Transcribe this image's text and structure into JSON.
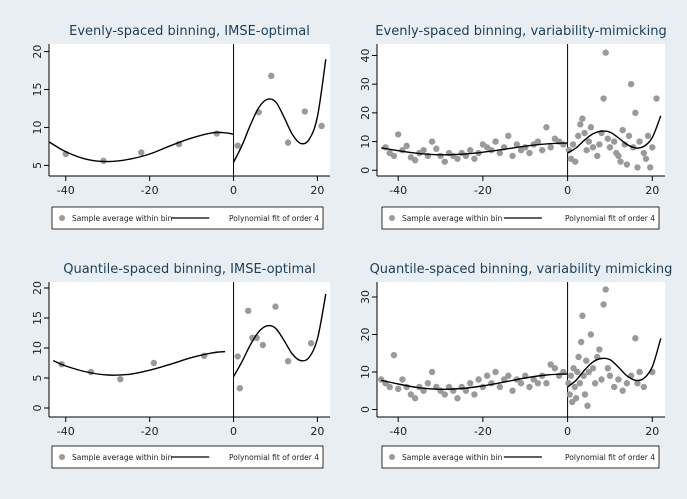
{
  "chart_data": [
    {
      "type": "scatter",
      "title": "Evenly-spaced binning, IMSE-optimal",
      "xlabel": "",
      "ylabel": "",
      "xlim": [
        -44,
        23
      ],
      "ylim": [
        3.6,
        21
      ],
      "xticks": [
        -40,
        -20,
        0,
        20
      ],
      "yticks": [
        5,
        10,
        15,
        20
      ],
      "cutoff": 0,
      "legend": [
        "Sample average within bin",
        "Polynomial fit of order 4"
      ],
      "grid": false,
      "points": [
        [
          -40,
          6.5
        ],
        [
          -31,
          5.6
        ],
        [
          -22,
          6.7
        ],
        [
          -13,
          7.8
        ],
        [
          -4,
          9.2
        ],
        [
          1,
          7.6
        ],
        [
          6,
          12
        ],
        [
          9,
          16.8
        ],
        [
          13,
          8
        ],
        [
          17,
          12.1
        ],
        [
          21,
          10.2
        ]
      ],
      "fit_left": [
        [
          -44,
          8.1
        ],
        [
          -40,
          6.8
        ],
        [
          -35,
          5.8
        ],
        [
          -30,
          5.5
        ],
        [
          -25,
          5.8
        ],
        [
          -20,
          6.5
        ],
        [
          -15,
          7.6
        ],
        [
          -10,
          8.6
        ],
        [
          -5,
          9.3
        ],
        [
          -2,
          9.3
        ],
        [
          0,
          9.1
        ]
      ],
      "fit_right": [
        [
          0,
          5.4
        ],
        [
          2,
          7.6
        ],
        [
          4,
          10.3
        ],
        [
          6,
          12.6
        ],
        [
          8,
          13.7
        ],
        [
          10,
          13.4
        ],
        [
          12,
          11.4
        ],
        [
          14,
          9.1
        ],
        [
          16,
          7.9
        ],
        [
          18,
          8.4
        ],
        [
          20,
          11.4
        ],
        [
          22,
          19
        ]
      ]
    },
    {
      "type": "scatter",
      "title": "Evenly-spaced binning, variability-mimicking",
      "xlabel": "",
      "ylabel": "",
      "xlim": [
        -45,
        23
      ],
      "ylim": [
        -2,
        44
      ],
      "xticks": [
        -40,
        -20,
        0,
        20
      ],
      "yticks": [
        0,
        10,
        20,
        30,
        40
      ],
      "cutoff": 0,
      "legend": [
        "Sample average within bin",
        "Polynomial fit of order 4"
      ],
      "grid": false,
      "points": [
        [
          -43,
          8
        ],
        [
          -42,
          6
        ],
        [
          -41,
          5
        ],
        [
          -40,
          12.5
        ],
        [
          -39,
          7
        ],
        [
          -38,
          8.5
        ],
        [
          -37,
          4.5
        ],
        [
          -36,
          3.5
        ],
        [
          -35,
          6
        ],
        [
          -34,
          7
        ],
        [
          -33,
          5
        ],
        [
          -32,
          10
        ],
        [
          -31,
          7.5
        ],
        [
          -30,
          5
        ],
        [
          -29,
          3
        ],
        [
          -28,
          6
        ],
        [
          -27,
          5
        ],
        [
          -26,
          4
        ],
        [
          -25,
          6
        ],
        [
          -24,
          5
        ],
        [
          -23,
          7
        ],
        [
          -22,
          4
        ],
        [
          -21,
          6
        ],
        [
          -20,
          9
        ],
        [
          -19,
          8
        ],
        [
          -18,
          7
        ],
        [
          -17,
          10
        ],
        [
          -16,
          6
        ],
        [
          -15,
          8
        ],
        [
          -14,
          12
        ],
        [
          -13,
          5
        ],
        [
          -12,
          9
        ],
        [
          -11,
          7
        ],
        [
          -10,
          8
        ],
        [
          -9,
          6
        ],
        [
          -8,
          9
        ],
        [
          -7,
          10
        ],
        [
          -6,
          7
        ],
        [
          -5,
          15
        ],
        [
          -4,
          8
        ],
        [
          -3,
          11
        ],
        [
          -2,
          10
        ],
        [
          -1,
          9
        ],
        [
          0.3,
          7
        ],
        [
          0.8,
          4
        ],
        [
          1.3,
          9
        ],
        [
          1.8,
          3
        ],
        [
          2.5,
          12
        ],
        [
          3,
          16
        ],
        [
          3.5,
          18
        ],
        [
          4,
          13
        ],
        [
          4.5,
          7
        ],
        [
          5,
          10
        ],
        [
          5.5,
          15
        ],
        [
          6,
          8
        ],
        [
          7,
          5
        ],
        [
          7.5,
          9
        ],
        [
          8,
          13
        ],
        [
          8.5,
          25
        ],
        [
          9,
          41
        ],
        [
          9.5,
          11
        ],
        [
          10,
          8
        ],
        [
          11,
          10
        ],
        [
          11.5,
          6
        ],
        [
          12,
          5
        ],
        [
          12.5,
          3
        ],
        [
          13,
          14
        ],
        [
          13.5,
          9
        ],
        [
          14,
          2
        ],
        [
          14.5,
          12
        ],
        [
          15,
          30
        ],
        [
          15.5,
          8
        ],
        [
          16,
          20
        ],
        [
          16.5,
          1
        ],
        [
          17,
          10
        ],
        [
          18,
          6
        ],
        [
          18.5,
          4
        ],
        [
          19,
          12
        ],
        [
          19.5,
          1
        ],
        [
          20,
          8
        ],
        [
          21,
          25
        ]
      ],
      "fit_left": [
        [
          -44,
          7.8
        ],
        [
          -40,
          6.8
        ],
        [
          -35,
          5.8
        ],
        [
          -30,
          5.4
        ],
        [
          -25,
          5.6
        ],
        [
          -20,
          6.3
        ],
        [
          -15,
          7.3
        ],
        [
          -10,
          8.4
        ],
        [
          -5,
          9.2
        ],
        [
          0,
          9.5
        ]
      ],
      "fit_right": [
        [
          0,
          6
        ],
        [
          2,
          7.8
        ],
        [
          4,
          10.5
        ],
        [
          6,
          12.7
        ],
        [
          8,
          13.6
        ],
        [
          10,
          13.3
        ],
        [
          12,
          11.3
        ],
        [
          14,
          9
        ],
        [
          16,
          7.8
        ],
        [
          18,
          8.3
        ],
        [
          20,
          11.4
        ],
        [
          22,
          19
        ]
      ]
    },
    {
      "type": "scatter",
      "title": "Quantile-spaced binning, IMSE-optimal",
      "xlabel": "",
      "ylabel": "",
      "xlim": [
        -44,
        23
      ],
      "ylim": [
        -1.5,
        21
      ],
      "xticks": [
        -40,
        -20,
        0,
        20
      ],
      "yticks": [
        0,
        5,
        10,
        15,
        20
      ],
      "cutoff": 0,
      "legend": [
        "Sample average within bin",
        "Polynomial fit of order 4"
      ],
      "grid": false,
      "points": [
        [
          -41,
          7.3
        ],
        [
          -34,
          6
        ],
        [
          -27,
          4.8
        ],
        [
          -19,
          7.5
        ],
        [
          -7,
          8.7
        ],
        [
          1,
          8.6
        ],
        [
          1.5,
          3.3
        ],
        [
          3.5,
          16.2
        ],
        [
          4.5,
          11.7
        ],
        [
          5.5,
          11.7
        ],
        [
          7,
          10.5
        ],
        [
          10,
          16.9
        ],
        [
          13,
          7.8
        ],
        [
          18.5,
          10.8
        ]
      ],
      "fit_left": [
        [
          -43,
          7.9
        ],
        [
          -40,
          7
        ],
        [
          -35,
          6
        ],
        [
          -30,
          5.5
        ],
        [
          -25,
          5.6
        ],
        [
          -20,
          6.3
        ],
        [
          -15,
          7.3
        ],
        [
          -10,
          8.4
        ],
        [
          -5,
          9.2
        ],
        [
          -2,
          9.4
        ]
      ],
      "fit_right": [
        [
          0,
          5.2
        ],
        [
          2,
          7.7
        ],
        [
          4,
          10.5
        ],
        [
          6,
          12.7
        ],
        [
          8,
          13.7
        ],
        [
          10,
          13.3
        ],
        [
          12,
          11.3
        ],
        [
          14,
          9
        ],
        [
          16,
          7.9
        ],
        [
          18,
          8.4
        ],
        [
          20,
          11.5
        ],
        [
          22,
          19
        ]
      ]
    },
    {
      "type": "scatter",
      "title": "Quantile-spaced binning, variability mimicking",
      "xlabel": "",
      "ylabel": "",
      "xlim": [
        -45,
        23
      ],
      "ylim": [
        -2,
        34
      ],
      "xticks": [
        -40,
        -20,
        0,
        20
      ],
      "yticks": [
        0,
        10,
        20,
        30
      ],
      "cutoff": 0,
      "legend": [
        "Sample average within bin",
        "Polynomial fit of order 4"
      ],
      "grid": false,
      "points": [
        [
          -44,
          8
        ],
        [
          -43,
          7
        ],
        [
          -42,
          6
        ],
        [
          -41,
          14.5
        ],
        [
          -40,
          5.5
        ],
        [
          -39,
          8
        ],
        [
          -38,
          6
        ],
        [
          -37,
          4
        ],
        [
          -36,
          3
        ],
        [
          -35,
          6
        ],
        [
          -34,
          5
        ],
        [
          -33,
          7
        ],
        [
          -32,
          10
        ],
        [
          -31,
          6
        ],
        [
          -30,
          5
        ],
        [
          -29,
          4
        ],
        [
          -28,
          6
        ],
        [
          -27,
          5
        ],
        [
          -26,
          3
        ],
        [
          -25,
          6
        ],
        [
          -24,
          5
        ],
        [
          -23,
          7
        ],
        [
          -22,
          4
        ],
        [
          -21,
          8
        ],
        [
          -20,
          6
        ],
        [
          -19,
          9
        ],
        [
          -18,
          7
        ],
        [
          -17,
          10
        ],
        [
          -16,
          6
        ],
        [
          -15,
          8
        ],
        [
          -14,
          9
        ],
        [
          -13,
          5
        ],
        [
          -12,
          8
        ],
        [
          -11,
          7
        ],
        [
          -10,
          9
        ],
        [
          -9,
          6
        ],
        [
          -8,
          8
        ],
        [
          -7,
          7
        ],
        [
          -6,
          9
        ],
        [
          -5,
          7
        ],
        [
          -4,
          12
        ],
        [
          -3,
          11
        ],
        [
          -2,
          9
        ],
        [
          -1,
          10
        ],
        [
          0.2,
          7
        ],
        [
          0.5,
          4
        ],
        [
          0.8,
          9
        ],
        [
          1.1,
          2
        ],
        [
          1.4,
          11
        ],
        [
          1.7,
          6
        ],
        [
          2,
          3
        ],
        [
          2.3,
          10
        ],
        [
          2.6,
          14
        ],
        [
          2.9,
          7
        ],
        [
          3.2,
          18
        ],
        [
          3.5,
          25
        ],
        [
          3.8,
          9
        ],
        [
          4.1,
          4
        ],
        [
          4.4,
          13
        ],
        [
          4.7,
          1
        ],
        [
          5,
          10
        ],
        [
          5.5,
          20
        ],
        [
          6,
          11
        ],
        [
          6.5,
          7
        ],
        [
          7,
          14
        ],
        [
          7.5,
          16
        ],
        [
          8,
          8
        ],
        [
          8.5,
          28
        ],
        [
          9,
          32
        ],
        [
          9.5,
          11
        ],
        [
          10,
          9
        ],
        [
          11,
          6
        ],
        [
          12,
          8
        ],
        [
          13,
          5
        ],
        [
          14,
          7
        ],
        [
          15,
          9
        ],
        [
          16,
          19
        ],
        [
          16.5,
          7
        ],
        [
          17,
          10
        ],
        [
          18,
          6
        ],
        [
          20,
          10
        ]
      ],
      "fit_left": [
        [
          -44,
          7.8
        ],
        [
          -40,
          6.8
        ],
        [
          -35,
          5.8
        ],
        [
          -30,
          5.4
        ],
        [
          -25,
          5.6
        ],
        [
          -20,
          6.3
        ],
        [
          -15,
          7.3
        ],
        [
          -10,
          8.4
        ],
        [
          -5,
          9.2
        ],
        [
          0,
          9.5
        ]
      ],
      "fit_right": [
        [
          0,
          6
        ],
        [
          2,
          7.8
        ],
        [
          4,
          10.5
        ],
        [
          6,
          12.7
        ],
        [
          8,
          13.6
        ],
        [
          10,
          13.3
        ],
        [
          12,
          11.3
        ],
        [
          14,
          9
        ],
        [
          16,
          7.8
        ],
        [
          18,
          8.3
        ],
        [
          20,
          11.4
        ],
        [
          22,
          19
        ]
      ]
    }
  ],
  "colors": {
    "background": "#e8eef2",
    "plot_region": "#ffffff",
    "title": "#1c3f5a",
    "points": "#9a9a9a",
    "fit_line": "#000000",
    "axis": "#000000"
  }
}
